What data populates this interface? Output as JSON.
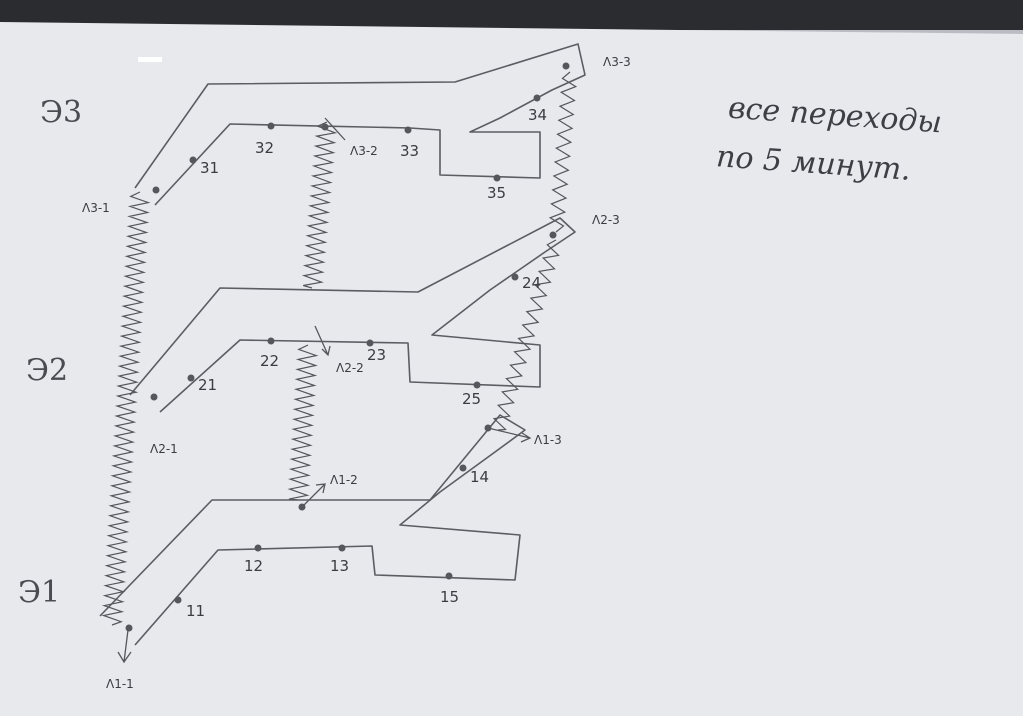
{
  "floors": [
    {
      "id": "e3",
      "label": "Э3"
    },
    {
      "id": "e2",
      "label": "Э2"
    },
    {
      "id": "e1",
      "label": "Э1"
    }
  ],
  "points": {
    "p31": "31",
    "p32": "32",
    "p33": "33",
    "p34": "34",
    "p35": "35",
    "p21": "21",
    "p22": "22",
    "p23": "23",
    "p24": "24",
    "p25": "25",
    "p11": "11",
    "p12": "12",
    "p13": "13",
    "p14": "14",
    "p15": "15"
  },
  "nodes": {
    "l3_1": "Λ3-1",
    "l3_2": "Λ3-2",
    "l3_3": "Λ3-3",
    "l2_1": "Λ2-1",
    "l2_2": "Λ2-2",
    "l2_3": "Λ2-3",
    "l1_1": "Λ1-1",
    "l1_2": "Λ1-2",
    "l1_3": "Λ1-3"
  },
  "note": {
    "line1": "все переходы",
    "line2": "по 5 минут."
  },
  "colors": {
    "paper": "#e9eaee",
    "pencil": "#5a5c62",
    "dot": "#55575c"
  }
}
